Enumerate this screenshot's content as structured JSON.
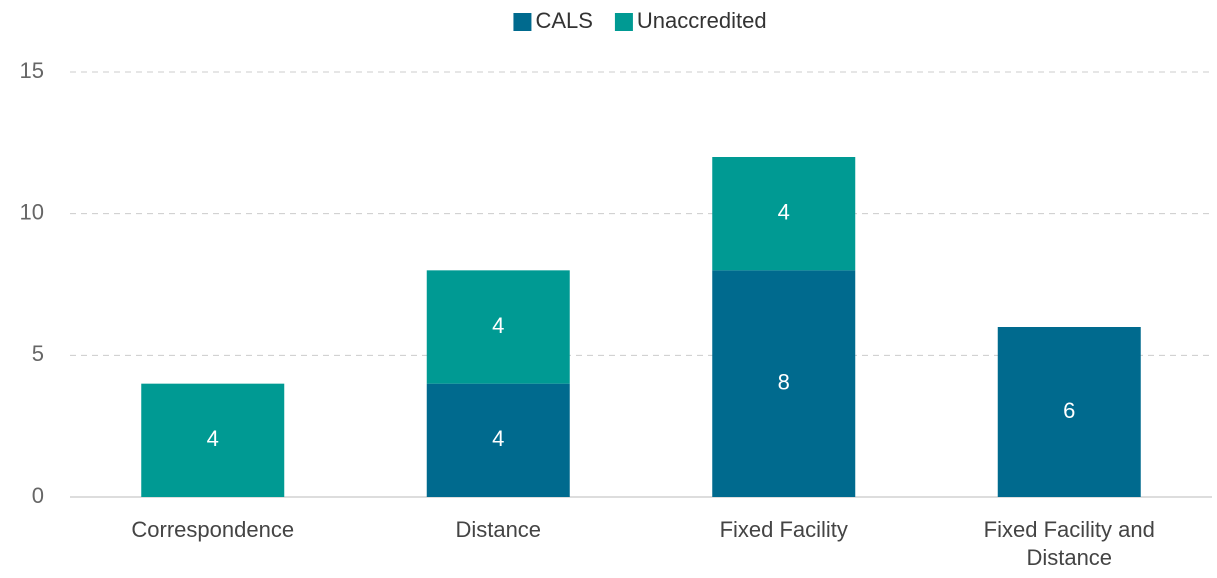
{
  "chart_data": {
    "type": "bar",
    "stacked": true,
    "categories": [
      "Correspondence",
      "Distance",
      "Fixed Facility",
      "Fixed Facility and Distance"
    ],
    "series": [
      {
        "name": "CALS",
        "color": "#006a8e",
        "values": [
          null,
          4,
          8,
          6
        ]
      },
      {
        "name": "Unaccredited",
        "color": "#009a93",
        "values": [
          4,
          4,
          4,
          null
        ]
      }
    ],
    "ylim": [
      0,
      15
    ],
    "yticks": [
      0,
      5,
      10,
      15
    ],
    "grid": true,
    "legend": "top"
  }
}
